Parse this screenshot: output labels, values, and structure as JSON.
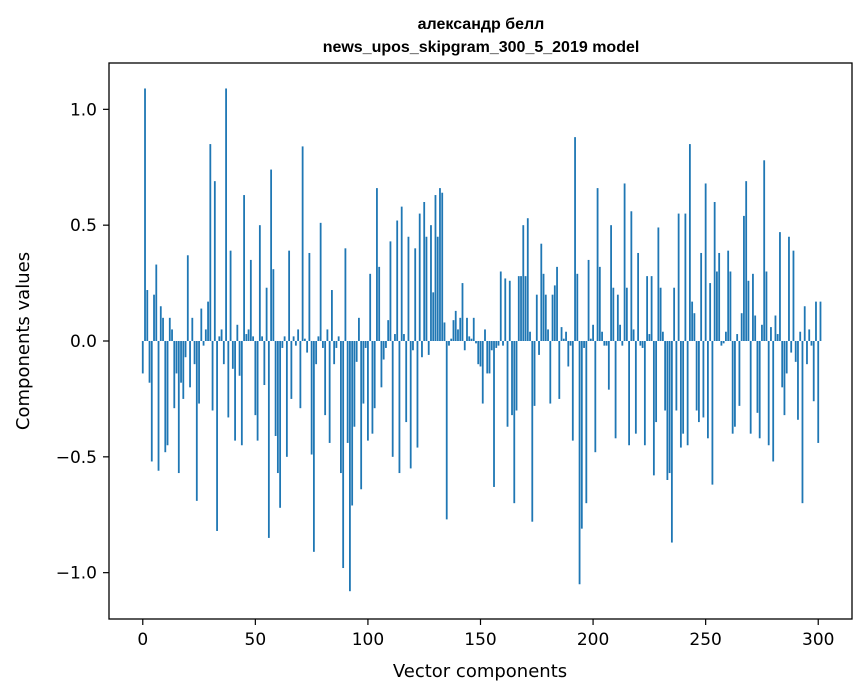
{
  "chart_data": {
    "type": "bar",
    "title_line1": "александр белл",
    "title_line2": "news_upos_skipgram_300_5_2019 model",
    "xlabel": "Vector components",
    "ylabel": "Components values",
    "xlim": [
      -15,
      315
    ],
    "ylim": [
      -1.2,
      1.2
    ],
    "xticks": [
      0,
      50,
      100,
      150,
      200,
      250,
      300
    ],
    "yticks": [
      -1.0,
      -0.5,
      0.0,
      0.5,
      1.0
    ],
    "xtick_labels": [
      "0",
      "50",
      "100",
      "150",
      "200",
      "250",
      "300"
    ],
    "ytick_labels": [
      "−1.0",
      "−0.5",
      "0.0",
      "0.5",
      "1.0"
    ],
    "color": "#1f77b4",
    "values": [
      -0.14,
      1.09,
      0.22,
      -0.18,
      -0.52,
      0.2,
      0.33,
      -0.56,
      0.15,
      0.1,
      -0.48,
      -0.45,
      0.1,
      0.05,
      -0.29,
      -0.14,
      -0.57,
      -0.18,
      -0.25,
      -0.07,
      0.37,
      -0.2,
      0.1,
      -0.1,
      -0.69,
      -0.27,
      0.14,
      -0.02,
      0.05,
      0.17,
      0.85,
      -0.3,
      0.69,
      -0.82,
      0.02,
      0.05,
      -0.1,
      1.09,
      -0.33,
      0.39,
      -0.12,
      -0.43,
      0.07,
      -0.15,
      -0.45,
      0.63,
      0.03,
      0.05,
      0.35,
      0.02,
      -0.32,
      -0.43,
      0.5,
      0.02,
      -0.19,
      0.23,
      -0.85,
      0.74,
      0.31,
      -0.41,
      -0.57,
      -0.72,
      -0.03,
      0.02,
      -0.5,
      0.39,
      -0.25,
      0.02,
      -0.02,
      0.05,
      -0.29,
      0.84,
      0.01,
      -0.05,
      0.38,
      -0.49,
      -0.91,
      -0.1,
      0.02,
      0.51,
      -0.03,
      -0.32,
      0.05,
      -0.44,
      0.22,
      -0.1,
      -0.03,
      0.02,
      -0.57,
      -0.98,
      0.4,
      -0.44,
      -1.08,
      -0.71,
      -0.37,
      -0.09,
      0.1,
      -0.64,
      -0.27,
      -0.03,
      -0.43,
      0.29,
      -0.4,
      -0.29,
      0.66,
      0.32,
      -0.2,
      -0.08,
      -0.03,
      0.09,
      0.43,
      -0.5,
      0.03,
      0.52,
      -0.57,
      0.58,
      0.03,
      -0.35,
      0.45,
      -0.55,
      -0.04,
      0.4,
      -0.46,
      0.55,
      -0.07,
      0.6,
      0.45,
      -0.06,
      0.5,
      0.21,
      0.63,
      0.45,
      0.66,
      0.64,
      0.08,
      -0.77,
      -0.02,
      0.01,
      0.09,
      0.13,
      0.05,
      0.1,
      0.25,
      -0.04,
      0.1,
      0.02,
      0.01,
      0.1,
      -0.01,
      -0.1,
      -0.11,
      -0.27,
      0.05,
      -0.14,
      -0.14,
      -0.04,
      -0.63,
      -0.03,
      -0.02,
      0.3,
      -0.02,
      0.27,
      -0.37,
      0.26,
      -0.32,
      -0.7,
      -0.3,
      0.28,
      0.28,
      0.5,
      0.28,
      0.53,
      0.04,
      -0.78,
      -0.28,
      0.2,
      -0.06,
      0.42,
      0.29,
      0.2,
      0.05,
      -0.27,
      0.2,
      0.24,
      0.32,
      -0.25,
      0.06,
      0.01,
      0.04,
      -0.11,
      -0.02,
      -0.43,
      0.88,
      0.29,
      -1.05,
      -0.81,
      -0.03,
      -0.7,
      0.35,
      0.01,
      0.07,
      -0.48,
      0.66,
      0.32,
      0.04,
      -0.02,
      -0.02,
      -0.21,
      0.5,
      0.23,
      -0.42,
      0.2,
      0.07,
      -0.02,
      0.68,
      0.23,
      -0.45,
      0.56,
      0.05,
      -0.4,
      0.38,
      -0.02,
      -0.03,
      -0.45,
      0.28,
      0.03,
      0.28,
      -0.58,
      -0.35,
      0.49,
      0.23,
      0.04,
      -0.3,
      -0.6,
      -0.57,
      -0.87,
      0.23,
      -0.3,
      0.55,
      -0.46,
      -0.4,
      0.55,
      -0.45,
      0.85,
      0.17,
      0.12,
      -0.3,
      -0.35,
      0.38,
      -0.33,
      0.68,
      -0.42,
      0.25,
      -0.62,
      0.6,
      0.3,
      0.38,
      -0.02,
      -0.01,
      0.04,
      0.39,
      0.3,
      -0.4,
      -0.37,
      0.03,
      -0.28,
      0.12,
      0.54,
      0.69,
      0.26,
      -0.4,
      0.29,
      0.11,
      -0.31,
      -0.42,
      0.07,
      0.78,
      0.3,
      -0.45,
      0.06,
      -0.52,
      0.11,
      0.03,
      0.47,
      -0.2,
      -0.32,
      -0.14,
      0.45,
      -0.05,
      0.39,
      -0.09,
      -0.34,
      0.04,
      -0.7,
      0.15,
      -0.1,
      0.05,
      -0.02,
      -0.26,
      0.17,
      -0.44,
      0.17
    ]
  }
}
